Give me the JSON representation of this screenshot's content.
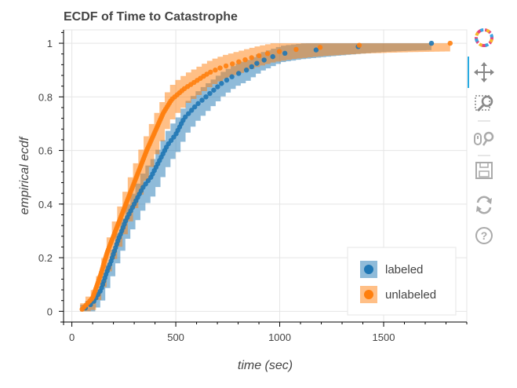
{
  "chart_data": {
    "type": "scatter",
    "title": "ECDF of Time to Catastrophe",
    "xlabel": "time (sec)",
    "ylabel": "empirical ecdf",
    "xlim": [
      -40,
      1900
    ],
    "ylim": [
      -0.04,
      1.05
    ],
    "xticks": [
      0,
      500,
      1000,
      1500
    ],
    "yticks": [
      0,
      0.2,
      0.4,
      0.6,
      0.8,
      1
    ],
    "xtick_labels": [
      "0",
      "500",
      "1000",
      "1500"
    ],
    "ytick_labels": [
      "0",
      "0.2",
      "0.4",
      "0.6",
      "0.8",
      "1"
    ],
    "grid": true,
    "legend_position": "bottom-right",
    "series": [
      {
        "name": "labeled",
        "color": "#1f77b4",
        "band_color": "#1f77b4",
        "curve": [
          [
            40,
            0.0
          ],
          [
            100,
            0.03
          ],
          [
            140,
            0.08
          ],
          [
            165,
            0.14
          ],
          [
            190,
            0.19
          ],
          [
            220,
            0.26
          ],
          [
            260,
            0.34
          ],
          [
            300,
            0.4
          ],
          [
            340,
            0.46
          ],
          [
            380,
            0.5
          ],
          [
            420,
            0.56
          ],
          [
            460,
            0.62
          ],
          [
            500,
            0.66
          ],
          [
            540,
            0.72
          ],
          [
            600,
            0.77
          ],
          [
            660,
            0.81
          ],
          [
            720,
            0.85
          ],
          [
            780,
            0.88
          ],
          [
            840,
            0.9
          ],
          [
            900,
            0.93
          ],
          [
            1000,
            0.96
          ],
          [
            1100,
            0.97
          ],
          [
            1250,
            0.98
          ],
          [
            1420,
            0.99
          ],
          [
            1530,
            0.995
          ],
          [
            1730,
            1.0
          ]
        ],
        "n_points": 80,
        "band_width": 0.05
      },
      {
        "name": "unlabeled",
        "color": "#ff7f0e",
        "band_color": "#ff7f0e",
        "curve": [
          [
            40,
            0.0
          ],
          [
            100,
            0.05
          ],
          [
            140,
            0.14
          ],
          [
            170,
            0.22
          ],
          [
            200,
            0.28
          ],
          [
            240,
            0.36
          ],
          [
            280,
            0.44
          ],
          [
            320,
            0.52
          ],
          [
            360,
            0.6
          ],
          [
            400,
            0.67
          ],
          [
            440,
            0.74
          ],
          [
            480,
            0.79
          ],
          [
            540,
            0.83
          ],
          [
            600,
            0.86
          ],
          [
            660,
            0.89
          ],
          [
            720,
            0.91
          ],
          [
            800,
            0.93
          ],
          [
            880,
            0.95
          ],
          [
            960,
            0.965
          ],
          [
            1050,
            0.975
          ],
          [
            1200,
            0.985
          ],
          [
            1400,
            0.993
          ],
          [
            1600,
            0.997
          ],
          [
            1820,
            1.0
          ]
        ],
        "n_points": 130,
        "band_width": 0.06
      }
    ]
  },
  "toolbar": {
    "tools": [
      "logo-icon",
      "pan-icon",
      "box-zoom-icon",
      "wheel-zoom-icon",
      "save-icon",
      "reset-icon",
      "help-icon"
    ]
  }
}
